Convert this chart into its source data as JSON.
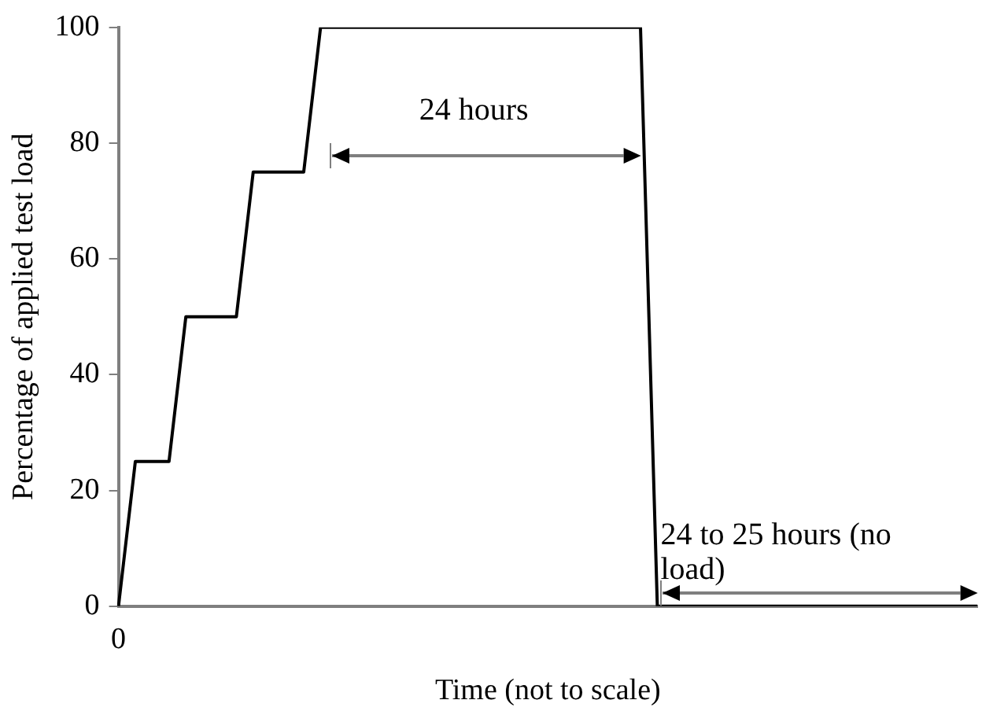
{
  "chart_data": {
    "type": "line",
    "xlabel": "Time (not to scale)",
    "ylabel": "Percentage of applied test load",
    "categories": [
      "0",
      null,
      null,
      null,
      null,
      null,
      null,
      null,
      null,
      null,
      null,
      null,
      null,
      null,
      null,
      null,
      null,
      null,
      null,
      null,
      null,
      null,
      null,
      null,
      null,
      null,
      null,
      null,
      null,
      null,
      null,
      null,
      null,
      null,
      null,
      null,
      null,
      null,
      null,
      null,
      null,
      null,
      null,
      null,
      null,
      null,
      null,
      null,
      null,
      null,
      null,
      null
    ],
    "series": [
      {
        "color": "#000000",
        "values": [
          0,
          25,
          25,
          25,
          50,
          50,
          50,
          50,
          75,
          75,
          75,
          75,
          100,
          100,
          100,
          100,
          100,
          100,
          100,
          100,
          100,
          100,
          100,
          100,
          100,
          100,
          100,
          100,
          100,
          100,
          100,
          100,
          0,
          0,
          0,
          0,
          0,
          0,
          0,
          0,
          0,
          0,
          0,
          0,
          0,
          0,
          0,
          0,
          0,
          0,
          0,
          0
        ]
      }
    ],
    "ylim": [
      0,
      100
    ],
    "yticks": [
      0,
      20,
      40,
      60,
      80,
      100
    ],
    "grid": false,
    "legend": false,
    "marker": "none",
    "line_style": "solid",
    "annotations": [
      "24 hours",
      "24 to 25 hours (no load)"
    ]
  }
}
